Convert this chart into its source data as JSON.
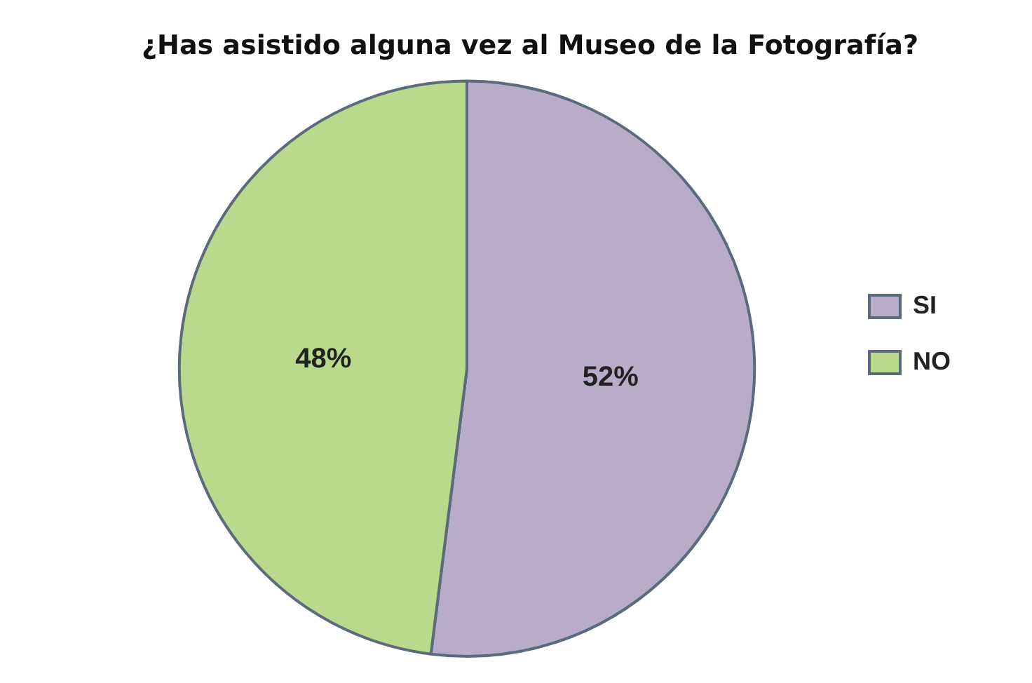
{
  "chart_data": {
    "type": "pie",
    "title": "¿Has asistido alguna vez al Museo de la Fotografía?",
    "categories": [
      "SI",
      "NO"
    ],
    "values": [
      52,
      48
    ],
    "colors": [
      "#b9acc9",
      "#b9d98c"
    ],
    "value_labels": [
      "52%",
      "48%"
    ],
    "legend": "right"
  }
}
